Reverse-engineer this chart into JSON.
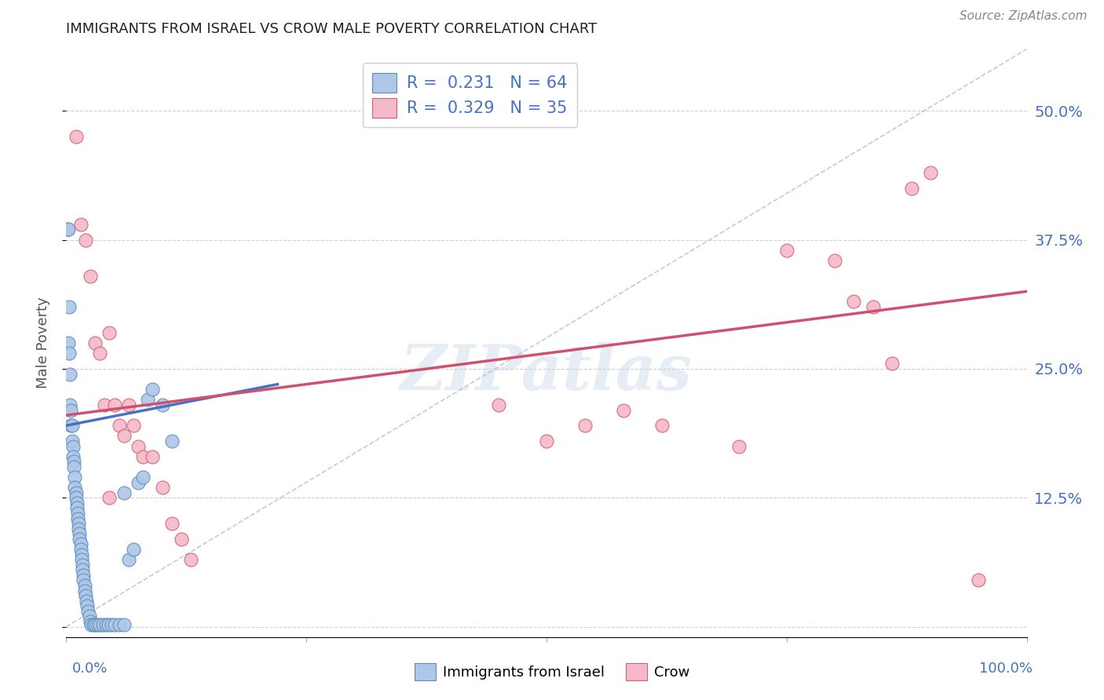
{
  "title": "IMMIGRANTS FROM ISRAEL VS CROW MALE POVERTY CORRELATION CHART",
  "source": "Source: ZipAtlas.com",
  "ylabel": "Male Poverty",
  "watermark": "ZIPatlas",
  "ytick_values": [
    0.0,
    0.125,
    0.25,
    0.375,
    0.5
  ],
  "ytick_labels": [
    "",
    "12.5%",
    "25.0%",
    "37.5%",
    "50.0%"
  ],
  "xlim": [
    0.0,
    1.0
  ],
  "ylim": [
    -0.01,
    0.56
  ],
  "scatter_blue": [
    [
      0.001,
      0.385
    ],
    [
      0.002,
      0.385
    ],
    [
      0.002,
      0.275
    ],
    [
      0.003,
      0.265
    ],
    [
      0.003,
      0.31
    ],
    [
      0.004,
      0.245
    ],
    [
      0.004,
      0.215
    ],
    [
      0.005,
      0.21
    ],
    [
      0.005,
      0.195
    ],
    [
      0.006,
      0.195
    ],
    [
      0.006,
      0.18
    ],
    [
      0.007,
      0.175
    ],
    [
      0.007,
      0.165
    ],
    [
      0.008,
      0.16
    ],
    [
      0.008,
      0.155
    ],
    [
      0.009,
      0.145
    ],
    [
      0.009,
      0.135
    ],
    [
      0.01,
      0.13
    ],
    [
      0.01,
      0.125
    ],
    [
      0.011,
      0.12
    ],
    [
      0.011,
      0.115
    ],
    [
      0.012,
      0.11
    ],
    [
      0.012,
      0.105
    ],
    [
      0.013,
      0.1
    ],
    [
      0.013,
      0.095
    ],
    [
      0.014,
      0.09
    ],
    [
      0.014,
      0.085
    ],
    [
      0.015,
      0.08
    ],
    [
      0.015,
      0.075
    ],
    [
      0.016,
      0.07
    ],
    [
      0.016,
      0.065
    ],
    [
      0.017,
      0.06
    ],
    [
      0.017,
      0.055
    ],
    [
      0.018,
      0.05
    ],
    [
      0.018,
      0.045
    ],
    [
      0.019,
      0.04
    ],
    [
      0.019,
      0.035
    ],
    [
      0.02,
      0.03
    ],
    [
      0.021,
      0.025
    ],
    [
      0.022,
      0.02
    ],
    [
      0.023,
      0.015
    ],
    [
      0.024,
      0.01
    ],
    [
      0.025,
      0.005
    ],
    [
      0.026,
      0.002
    ],
    [
      0.028,
      0.002
    ],
    [
      0.03,
      0.002
    ],
    [
      0.032,
      0.002
    ],
    [
      0.035,
      0.002
    ],
    [
      0.038,
      0.002
    ],
    [
      0.041,
      0.002
    ],
    [
      0.044,
      0.002
    ],
    [
      0.047,
      0.002
    ],
    [
      0.05,
      0.002
    ],
    [
      0.055,
      0.002
    ],
    [
      0.06,
      0.002
    ],
    [
      0.065,
      0.065
    ],
    [
      0.07,
      0.075
    ],
    [
      0.075,
      0.14
    ],
    [
      0.08,
      0.145
    ],
    [
      0.085,
      0.22
    ],
    [
      0.09,
      0.23
    ],
    [
      0.1,
      0.215
    ],
    [
      0.11,
      0.18
    ],
    [
      0.06,
      0.13
    ]
  ],
  "scatter_pink": [
    [
      0.01,
      0.475
    ],
    [
      0.015,
      0.39
    ],
    [
      0.02,
      0.375
    ],
    [
      0.025,
      0.34
    ],
    [
      0.03,
      0.275
    ],
    [
      0.035,
      0.265
    ],
    [
      0.04,
      0.215
    ],
    [
      0.045,
      0.285
    ],
    [
      0.05,
      0.215
    ],
    [
      0.055,
      0.195
    ],
    [
      0.06,
      0.185
    ],
    [
      0.065,
      0.215
    ],
    [
      0.07,
      0.195
    ],
    [
      0.075,
      0.175
    ],
    [
      0.08,
      0.165
    ],
    [
      0.09,
      0.165
    ],
    [
      0.1,
      0.135
    ],
    [
      0.11,
      0.1
    ],
    [
      0.12,
      0.085
    ],
    [
      0.13,
      0.065
    ],
    [
      0.045,
      0.125
    ],
    [
      0.45,
      0.215
    ],
    [
      0.5,
      0.18
    ],
    [
      0.54,
      0.195
    ],
    [
      0.58,
      0.21
    ],
    [
      0.62,
      0.195
    ],
    [
      0.7,
      0.175
    ],
    [
      0.75,
      0.365
    ],
    [
      0.8,
      0.355
    ],
    [
      0.82,
      0.315
    ],
    [
      0.84,
      0.31
    ],
    [
      0.86,
      0.255
    ],
    [
      0.88,
      0.425
    ],
    [
      0.9,
      0.44
    ],
    [
      0.95,
      0.045
    ]
  ],
  "blue_line_x": [
    0.0,
    0.22
  ],
  "blue_line_y": [
    0.195,
    0.235
  ],
  "pink_line_x": [
    0.0,
    1.0
  ],
  "pink_line_y": [
    0.205,
    0.325
  ],
  "dashed_line_x": [
    0.0,
    1.0
  ],
  "dashed_line_y": [
    0.0,
    0.56
  ],
  "scatter_blue_color": "#aec6e8",
  "scatter_blue_edge": "#5b8db8",
  "scatter_pink_color": "#f4b8c8",
  "scatter_pink_edge": "#d06070",
  "blue_line_color": "#4472c4",
  "pink_line_color": "#d05070",
  "dashed_line_color": "#a0b8d0",
  "background_color": "#ffffff",
  "grid_color": "#d0d0d0",
  "title_color": "#222222",
  "axis_label_color": "#4472c4",
  "right_ytick_color": "#4472c4",
  "legend_blue_label": "R =  0.231   N = 64",
  "legend_pink_label": "R =  0.329   N = 35",
  "legend_bottom_blue": "Immigrants from Israel",
  "legend_bottom_pink": "Crow"
}
